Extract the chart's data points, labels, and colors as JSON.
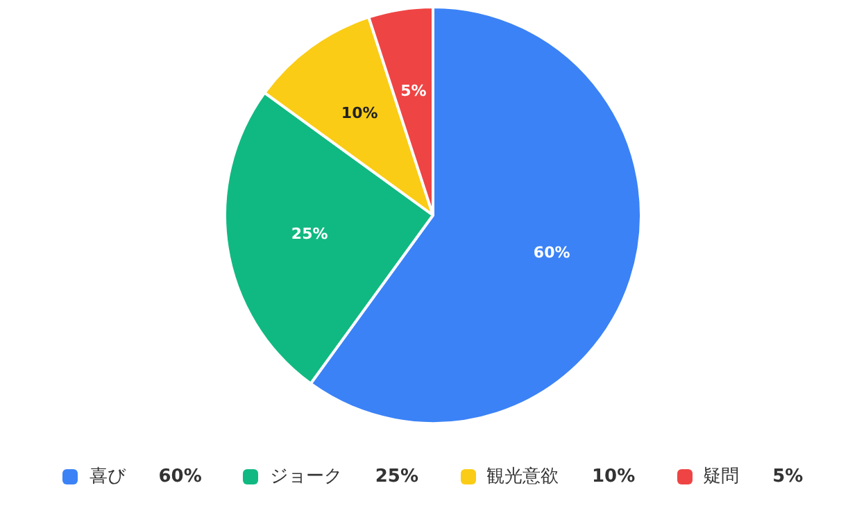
{
  "chart_data": {
    "type": "pie",
    "categories": [
      "喜び",
      "ジョーク",
      "観光意欲",
      "疑問"
    ],
    "values": [
      60,
      25,
      10,
      5
    ],
    "colors": [
      "#3b82f6",
      "#10b981",
      "#facc15",
      "#ef4444"
    ],
    "value_labels": [
      "60%",
      "25%",
      "10%",
      "5%"
    ],
    "legend": "bottom"
  }
}
